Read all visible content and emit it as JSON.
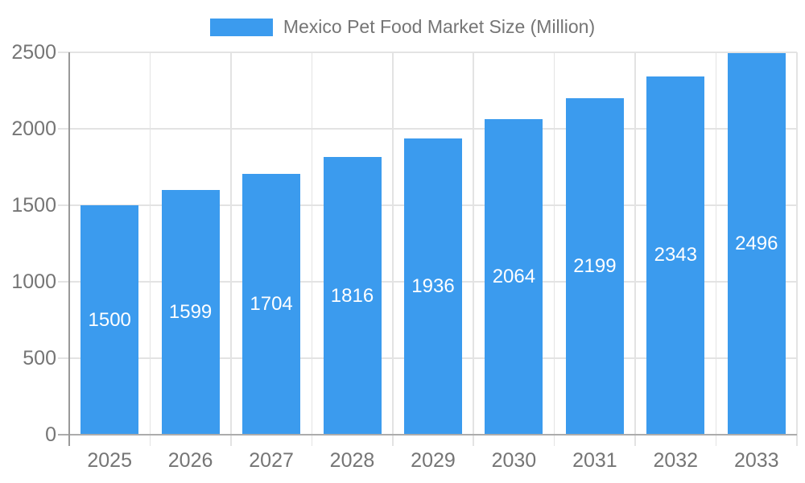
{
  "legend": {
    "label": "Mexico Pet Food Market Size (Million)"
  },
  "colors": {
    "background": "#FFFFFF",
    "bar_fill": "#3B9BEE",
    "bar_value_text": "#FFFFFF",
    "axis_label_text": "#757575",
    "legend_text": "#757575",
    "gridline": "#E3E3E3",
    "y_axis_line": "#999999",
    "baseline": "#ACACAC"
  },
  "chart_data": {
    "type": "bar",
    "title": "Mexico Pet Food Market Size (Million)",
    "legend_entries": [
      "Mexico Pet Food Market Size (Million)"
    ],
    "legend_position": "top-center",
    "categories": [
      "2025",
      "2026",
      "2027",
      "2028",
      "2029",
      "2030",
      "2031",
      "2032",
      "2033"
    ],
    "series": [
      {
        "name": "Mexico Pet Food Market Size (Million)",
        "values": [
          1500,
          1599,
          1704,
          1816,
          1936,
          2064,
          2199,
          2343,
          2496
        ]
      }
    ],
    "xlabel": "",
    "ylabel": "",
    "ylim": [
      0,
      2500
    ],
    "yticks": [
      0,
      500,
      1000,
      1500,
      2000,
      2500
    ],
    "grid": true,
    "value_labels": "inside-center"
  }
}
